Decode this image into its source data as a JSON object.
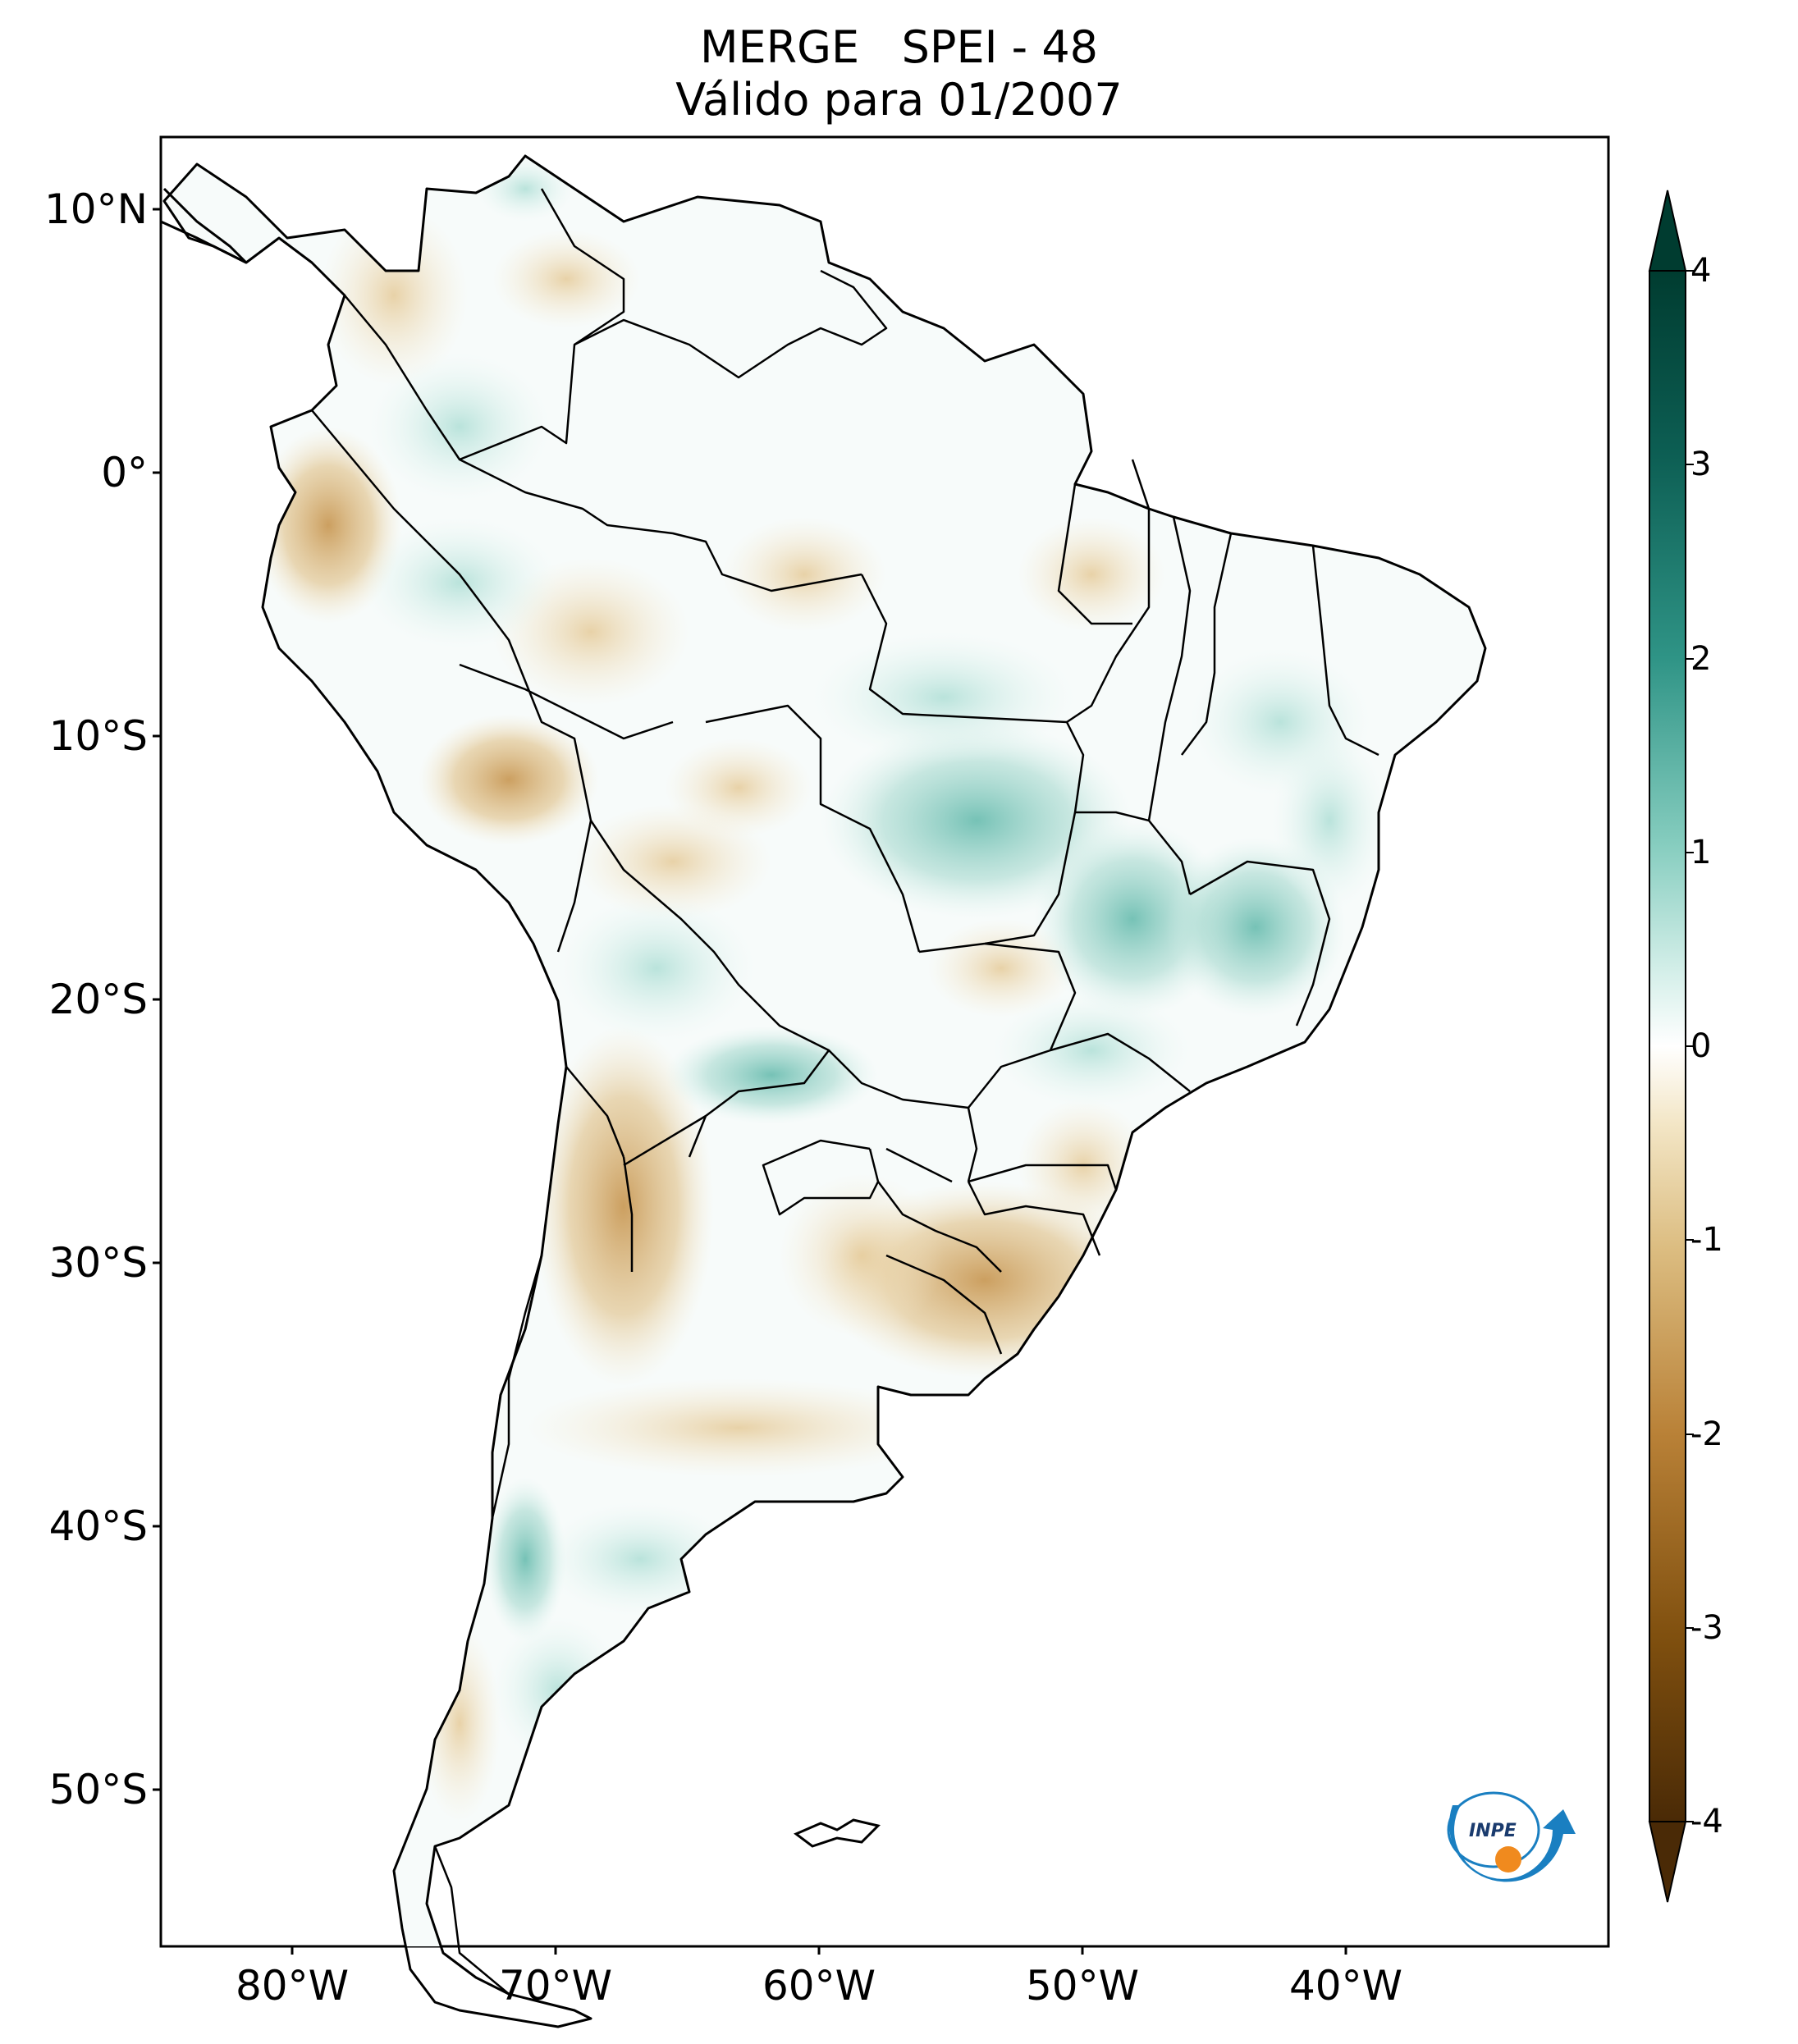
{
  "title": {
    "line1": "MERGE   SPEI - 48",
    "line2": "Válido para 01/2007"
  },
  "axes": {
    "lat_ticks": [
      "10°N",
      "0°",
      "10°S",
      "20°S",
      "30°S",
      "40°S",
      "50°S"
    ],
    "lon_ticks": [
      "80°W",
      "70°W",
      "60°W",
      "50°W",
      "40°W"
    ],
    "lon_range": [
      -85,
      -30
    ],
    "lat_range": [
      -56,
      12.5
    ]
  },
  "colorbar": {
    "ticks": [
      "4",
      "3",
      "2",
      "1",
      "0",
      "-1",
      "-2",
      "-3",
      "-4"
    ],
    "min": -4,
    "max": 4,
    "colors": {
      "dry_extreme": "#4a2a06",
      "dry_strong": "#9a6520",
      "dry_moderate": "#d2a85e",
      "dry_mild": "#f0dfb8",
      "neutral": "#ffffff",
      "wet_mild": "#c6ebe3",
      "wet_moderate": "#5fb8aa",
      "wet_strong": "#1b7a6e",
      "wet_extreme": "#003c30"
    }
  },
  "logo": {
    "text": "INPE"
  }
}
